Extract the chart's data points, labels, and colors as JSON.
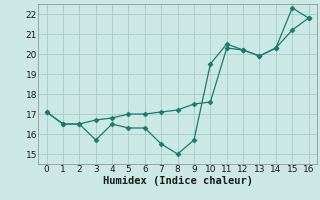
{
  "x": [
    0,
    1,
    2,
    3,
    4,
    5,
    6,
    7,
    8,
    9,
    10,
    11,
    12,
    13,
    14,
    15,
    16
  ],
  "line1": [
    17.1,
    16.5,
    16.5,
    16.7,
    16.8,
    17.0,
    17.0,
    17.1,
    17.2,
    17.5,
    17.6,
    20.3,
    20.2,
    19.9,
    20.3,
    21.2,
    21.8
  ],
  "line2": [
    17.1,
    16.5,
    16.5,
    15.7,
    16.5,
    16.3,
    16.3,
    15.5,
    15.0,
    15.7,
    19.5,
    20.5,
    20.2,
    19.9,
    20.3,
    22.3,
    21.8
  ],
  "line_color": "#1a7a6e",
  "bg_color": "#cce8e4",
  "grid_color": "#aacfcc",
  "xlabel": "Humidex (Indice chaleur)",
  "xlim": [
    -0.5,
    16.5
  ],
  "ylim": [
    14.5,
    22.5
  ],
  "yticks": [
    15,
    16,
    17,
    18,
    19,
    20,
    21,
    22
  ],
  "xticks": [
    0,
    1,
    2,
    3,
    4,
    5,
    6,
    7,
    8,
    9,
    10,
    11,
    12,
    13,
    14,
    15,
    16
  ],
  "marker": "D",
  "marker_size": 2.5,
  "line_width": 0.9,
  "xlabel_fontsize": 7.5,
  "tick_fontsize": 6.5
}
